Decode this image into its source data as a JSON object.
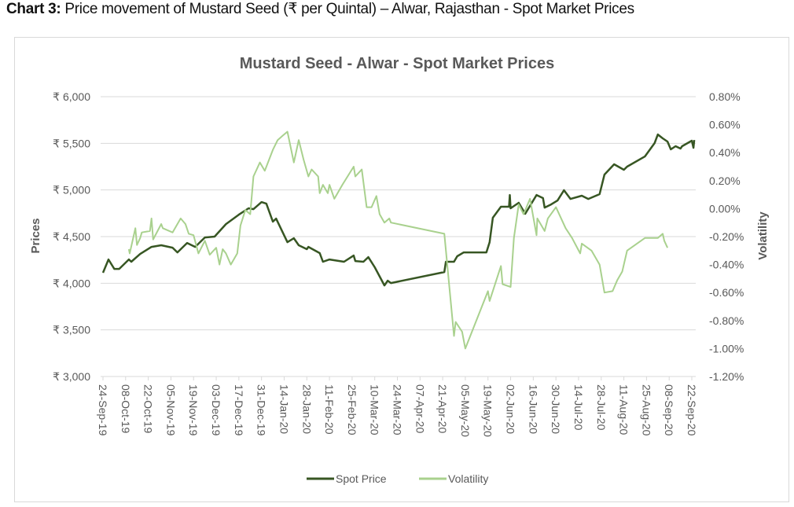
{
  "caption": {
    "bold": "Chart 3:",
    "text": " Price movement of Mustard Seed (₹ per Quintal) – Alwar, Rajasthan - Spot Market Prices"
  },
  "chart_data": {
    "type": "line",
    "title": "Mustard Seed - Alwar - Spot Market Prices",
    "xlabel": "",
    "ylabel": "Prices",
    "y2label": "Volatility",
    "x_unit": "days since 24-Sep-19",
    "xlim": [
      0,
      364
    ],
    "ylim": [
      3000,
      6000
    ],
    "y2lim": [
      -1.2,
      0.8
    ],
    "grid": true,
    "legend_position": "bottom",
    "y_ticks": [
      "₹ 6,000",
      "₹ 5,500",
      "₹ 5,000",
      "₹ 4,500",
      "₹ 4,000",
      "₹ 3,500",
      "₹ 3,000"
    ],
    "y_tick_values": [
      6000,
      5500,
      5000,
      4500,
      4000,
      3500,
      3000
    ],
    "y2_ticks": [
      "0.80%",
      "0.60%",
      "0.40%",
      "0.20%",
      "0.00%",
      "-0.20%",
      "-0.40%",
      "-0.60%",
      "-0.80%",
      "-1.00%",
      "-1.20%"
    ],
    "y2_tick_values": [
      0.8,
      0.6,
      0.4,
      0.2,
      0,
      -0.2,
      -0.4,
      -0.6,
      -0.8,
      -1.0,
      -1.2
    ],
    "x_ticks": [
      "24-Sep-19",
      "08-Oct-19",
      "22-Oct-19",
      "05-Nov-19",
      "19-Nov-19",
      "03-Dec-19",
      "17-Dec-19",
      "31-Dec-19",
      "14-Jan-20",
      "28-Jan-20",
      "11-Feb-20",
      "25-Feb-20",
      "10-Mar-20",
      "24-Mar-20",
      "07-Apr-20",
      "21-Apr-20",
      "05-May-20",
      "19-May-20",
      "02-Jun-20",
      "16-Jun-20",
      "30-Jun-20",
      "14-Jul-20",
      "28-Jul-20",
      "11-Aug-20",
      "25-Aug-20",
      "08-Sep-20",
      "22-Sep-20"
    ],
    "series": [
      {
        "name": "Spot Price",
        "axis": "left",
        "color": "#375623",
        "points": [
          [
            0,
            4112
          ],
          [
            3.4,
            4255
          ],
          [
            7,
            4154
          ],
          [
            10,
            4154
          ],
          [
            16,
            4255
          ],
          [
            17.5,
            4230
          ],
          [
            23,
            4314
          ],
          [
            30,
            4390
          ],
          [
            36,
            4407
          ],
          [
            43,
            4381
          ],
          [
            46,
            4331
          ],
          [
            52,
            4432
          ],
          [
            57,
            4390
          ],
          [
            63,
            4491
          ],
          [
            69,
            4500
          ],
          [
            76,
            4634
          ],
          [
            84,
            4735
          ],
          [
            90,
            4803
          ],
          [
            93,
            4794
          ],
          [
            98,
            4870
          ],
          [
            101,
            4853
          ],
          [
            105,
            4660
          ],
          [
            107,
            4693
          ],
          [
            114,
            4440
          ],
          [
            118,
            4482
          ],
          [
            121,
            4407
          ],
          [
            126,
            4365
          ],
          [
            127,
            4390
          ],
          [
            134,
            4323
          ],
          [
            136,
            4230
          ],
          [
            140,
            4255
          ],
          [
            149,
            4230
          ],
          [
            155,
            4297
          ],
          [
            156,
            4238
          ],
          [
            161,
            4230
          ],
          [
            164,
            4280
          ],
          [
            168,
            4171
          ],
          [
            174,
            3977
          ],
          [
            176,
            4027
          ],
          [
            178,
            4002
          ],
          [
            211,
            4120
          ],
          [
            212,
            4230
          ],
          [
            217,
            4230
          ],
          [
            219,
            4289
          ],
          [
            223,
            4331
          ],
          [
            237,
            4331
          ],
          [
            239,
            4440
          ],
          [
            241,
            4702
          ],
          [
            246,
            4820
          ],
          [
            251,
            4820
          ],
          [
            251.5,
            4946
          ],
          [
            252,
            4803
          ],
          [
            257,
            4862
          ],
          [
            261,
            4744
          ],
          [
            268,
            4946
          ],
          [
            272,
            4913
          ],
          [
            273,
            4811
          ],
          [
            277,
            4845
          ],
          [
            281,
            4887
          ],
          [
            285,
            4997
          ],
          [
            289,
            4904
          ],
          [
            296,
            4938
          ],
          [
            300,
            4904
          ],
          [
            307,
            4955
          ],
          [
            310,
            5165
          ],
          [
            316,
            5275
          ],
          [
            322,
            5216
          ],
          [
            324,
            5250
          ],
          [
            335,
            5359
          ],
          [
            341,
            5503
          ],
          [
            343,
            5595
          ],
          [
            346,
            5553
          ],
          [
            349,
            5519
          ],
          [
            351,
            5435
          ],
          [
            354,
            5469
          ],
          [
            357,
            5444
          ],
          [
            358,
            5469
          ],
          [
            364,
            5528
          ],
          [
            365,
            5452
          ],
          [
            365.5,
            5536
          ]
        ]
      },
      {
        "name": "Volatility",
        "axis": "right",
        "color": "#a9d18e",
        "points": [
          [
            16,
            -0.29
          ],
          [
            16.5,
            -0.32
          ],
          [
            20,
            -0.14
          ],
          [
            21,
            -0.26
          ],
          [
            23,
            -0.21
          ],
          [
            24,
            -0.17
          ],
          [
            29,
            -0.16
          ],
          [
            30,
            -0.07
          ],
          [
            31,
            -0.22
          ],
          [
            36,
            -0.11
          ],
          [
            37,
            -0.14
          ],
          [
            43,
            -0.17
          ],
          [
            48,
            -0.07
          ],
          [
            51,
            -0.11
          ],
          [
            53,
            -0.18
          ],
          [
            56,
            -0.19
          ],
          [
            59,
            -0.32
          ],
          [
            63,
            -0.23
          ],
          [
            66,
            -0.33
          ],
          [
            70,
            -0.28
          ],
          [
            72,
            -0.4
          ],
          [
            74,
            -0.29
          ],
          [
            76,
            -0.32
          ],
          [
            79,
            -0.4
          ],
          [
            83,
            -0.32
          ],
          [
            85,
            -0.12
          ],
          [
            88,
            -0.01
          ],
          [
            91,
            -0.04
          ],
          [
            93,
            0.23
          ],
          [
            97,
            0.33
          ],
          [
            100,
            0.27
          ],
          [
            105,
            0.42
          ],
          [
            108,
            0.49
          ],
          [
            111,
            0.52
          ],
          [
            114,
            0.55
          ],
          [
            118,
            0.33
          ],
          [
            121,
            0.49
          ],
          [
            124,
            0.35
          ],
          [
            127,
            0.23
          ],
          [
            129,
            0.28
          ],
          [
            133,
            0.23
          ],
          [
            134,
            0.11
          ],
          [
            136,
            0.17
          ],
          [
            139,
            0.11
          ],
          [
            140,
            0.17
          ],
          [
            143,
            0.07
          ],
          [
            148,
            0.17
          ],
          [
            155,
            0.3
          ],
          [
            156,
            0.23
          ],
          [
            160,
            0.28
          ],
          [
            163,
            0.01
          ],
          [
            166,
            0.01
          ],
          [
            169,
            0.09
          ],
          [
            171,
            -0.04
          ],
          [
            174,
            -0.1
          ],
          [
            177,
            -0.07
          ],
          [
            178,
            -0.1
          ],
          [
            211,
            -0.18
          ],
          [
            217,
            -0.91
          ],
          [
            218,
            -0.81
          ],
          [
            222,
            -0.88
          ],
          [
            224,
            -1.0
          ],
          [
            238,
            -0.59
          ],
          [
            239,
            -0.66
          ],
          [
            246,
            -0.41
          ],
          [
            247,
            -0.54
          ],
          [
            252,
            -0.56
          ],
          [
            254,
            -0.21
          ],
          [
            257,
            0.03
          ],
          [
            260,
            -0.04
          ],
          [
            264,
            0.07
          ],
          [
            268,
            -0.19
          ],
          [
            268.5,
            -0.07
          ],
          [
            273,
            -0.16
          ],
          [
            275,
            -0.07
          ],
          [
            280,
            0.01
          ],
          [
            286,
            -0.14
          ],
          [
            290,
            -0.21
          ],
          [
            295,
            -0.32
          ],
          [
            296,
            -0.25
          ],
          [
            302,
            -0.3
          ],
          [
            307,
            -0.4
          ],
          [
            310,
            -0.6
          ],
          [
            315,
            -0.59
          ],
          [
            318,
            -0.51
          ],
          [
            321,
            -0.45
          ],
          [
            324,
            -0.3
          ],
          [
            335,
            -0.21
          ],
          [
            343,
            -0.21
          ],
          [
            346,
            -0.18
          ],
          [
            347,
            -0.23
          ],
          [
            349,
            -0.28
          ]
        ]
      }
    ]
  }
}
